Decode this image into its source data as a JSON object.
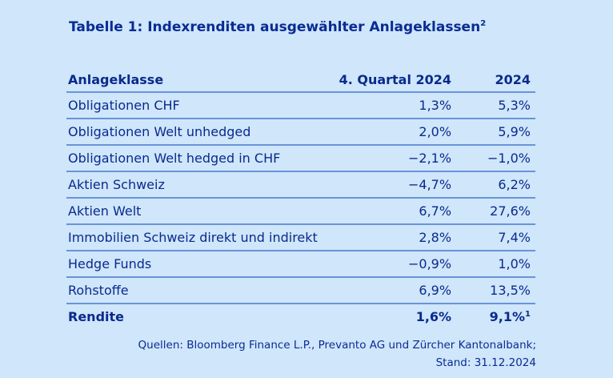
{
  "title": {
    "text": "Tabelle 1: Indexrenditen ausgewählter Anlageklassen",
    "footnote_mark": "2"
  },
  "table": {
    "headers": [
      "Anlageklasse",
      "4. Quartal 2024",
      "2024"
    ],
    "rows": [
      {
        "name": "Obligationen CHF",
        "q4": "1,3%",
        "year": "5,3%"
      },
      {
        "name": "Obligationen Welt unhedged",
        "q4": "2,0%",
        "year": "5,9%"
      },
      {
        "name": "Obligationen Welt hedged in CHF",
        "q4": "−2,1%",
        "year": "−1,0%"
      },
      {
        "name": "Aktien Schweiz",
        "q4": "−4,7%",
        "year": "6,2%"
      },
      {
        "name": "Aktien Welt",
        "q4": "6,7%",
        "year": "27,6%"
      },
      {
        "name": "Immobilien Schweiz direkt und indirekt",
        "q4": "2,8%",
        "year": "7,4%"
      },
      {
        "name": "Hedge Funds",
        "q4": "−0,9%",
        "year": "1,0%"
      },
      {
        "name": "Rohstoffe",
        "q4": "6,9%",
        "year": "13,5%"
      }
    ],
    "total": {
      "name": "Rendite",
      "q4": "1,6%",
      "year": "9,1%",
      "year_footnote_mark": "1"
    }
  },
  "source": {
    "line1": "Quellen: Bloomberg Finance L.P., Prevanto AG und Zürcher Kantonalbank;",
    "line2": "Stand: 31.12.2024"
  }
}
